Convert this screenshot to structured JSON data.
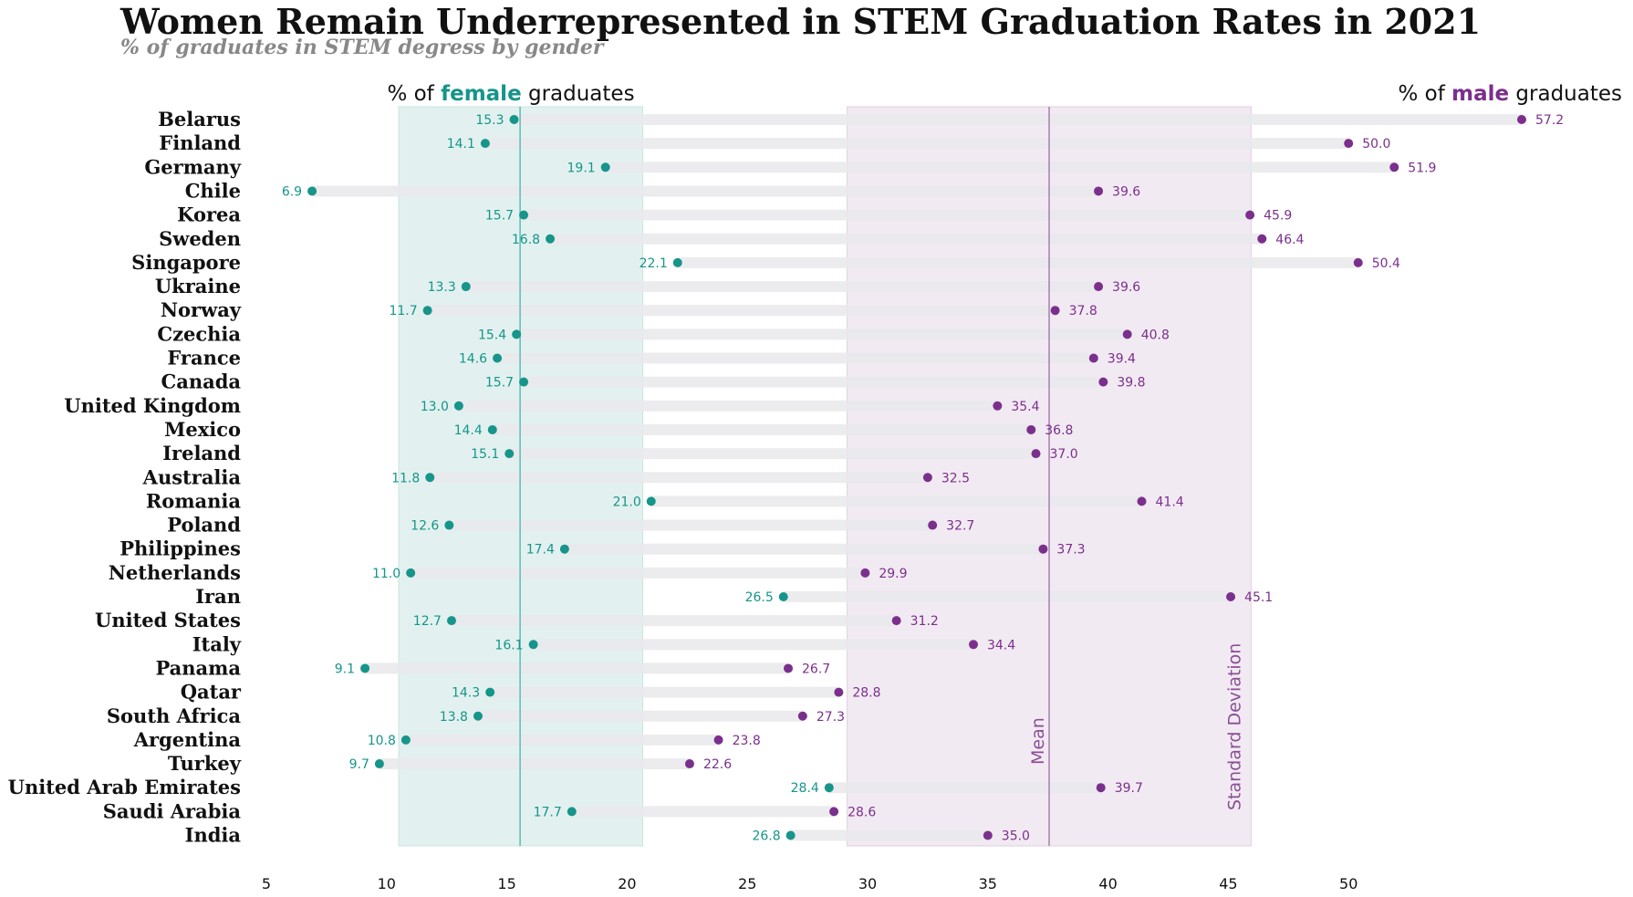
{
  "title": "Women Remain Underrepresented in STEM Graduation Rates in 2021",
  "subtitle": "% of graduates in STEM degress by gender",
  "female_header": {
    "prefix": "% of ",
    "emph": "female",
    "suffix": " graduates"
  },
  "male_header": {
    "prefix": "% of ",
    "emph": "male",
    "suffix": " graduates"
  },
  "mean_label": "Mean",
  "std_label": "Standard Deviation",
  "colors": {
    "female": "#16958a",
    "male": "#7b2f8c",
    "track": "#e9e9ec",
    "female_band": "#e2f1ef",
    "male_band": "#f0e6f0"
  },
  "chart_data": {
    "type": "dumbbell",
    "x_ticks": [
      5,
      10,
      15,
      20,
      25,
      30,
      35,
      40,
      45,
      50
    ],
    "xlim": [
      5,
      57.2
    ],
    "categories": [
      "Belarus",
      "Finland",
      "Germany",
      "Chile",
      "Korea",
      "Sweden",
      "Singapore",
      "Ukraine",
      "Norway",
      "Czechia",
      "France",
      "Canada",
      "United Kingdom",
      "Mexico",
      "Ireland",
      "Australia",
      "Romania",
      "Poland",
      "Philippines",
      "Netherlands",
      "Iran",
      "United States",
      "Italy",
      "Panama",
      "Qatar",
      "South Africa",
      "Argentina",
      "Turkey",
      "United Arab Emirates",
      "Saudi Arabia",
      "India"
    ],
    "series": [
      {
        "name": "female",
        "values": [
          15.3,
          14.1,
          19.1,
          6.9,
          15.7,
          16.8,
          22.1,
          13.3,
          11.7,
          15.4,
          14.6,
          15.7,
          13.0,
          14.4,
          15.1,
          11.8,
          21.0,
          12.6,
          17.4,
          11.0,
          26.5,
          12.7,
          16.1,
          9.1,
          14.3,
          13.8,
          10.8,
          9.7,
          28.4,
          17.7,
          26.8
        ]
      },
      {
        "name": "male",
        "values": [
          57.2,
          50.0,
          51.9,
          39.6,
          45.9,
          46.4,
          50.4,
          39.6,
          37.8,
          40.8,
          39.4,
          39.8,
          35.4,
          36.8,
          37.0,
          32.5,
          41.4,
          32.7,
          37.3,
          29.9,
          45.1,
          31.2,
          34.4,
          26.7,
          28.8,
          27.3,
          23.8,
          22.6,
          39.7,
          28.6,
          35.0
        ]
      }
    ],
    "female_mean": 15.55,
    "female_std_range": [
      10.5,
      20.65
    ],
    "male_mean": 37.55,
    "male_std_range": [
      29.15,
      45.95
    ]
  }
}
